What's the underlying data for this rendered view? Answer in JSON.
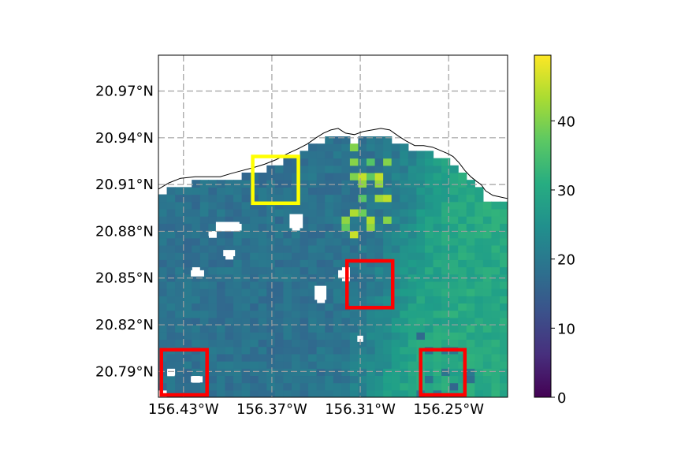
{
  "chart_data": {
    "type": "heatmap",
    "title": "",
    "xlabel": "",
    "ylabel": "",
    "projection": "geographic lat/lon map with coastline",
    "xlim": [
      -156.447,
      -156.21
    ],
    "ylim": [
      20.7735,
      20.993
    ],
    "x_ticks": [
      {
        "value": -156.43,
        "label": "156.43°W"
      },
      {
        "value": -156.37,
        "label": "156.37°W"
      },
      {
        "value": -156.31,
        "label": "156.31°W"
      },
      {
        "value": -156.25,
        "label": "156.25°W"
      }
    ],
    "y_ticks": [
      {
        "value": 20.97,
        "label": "20.97°N"
      },
      {
        "value": 20.94,
        "label": "20.94°N"
      },
      {
        "value": 20.91,
        "label": "20.91°N"
      },
      {
        "value": 20.88,
        "label": "20.88°N"
      },
      {
        "value": 20.85,
        "label": "20.85°N"
      },
      {
        "value": 20.82,
        "label": "20.82°N"
      },
      {
        "value": 20.79,
        "label": "20.79°N"
      }
    ],
    "grid": true,
    "grid_style": "dashed gray",
    "colormap": "viridis",
    "colorbar": {
      "min": 0,
      "max": 49.5,
      "ticks": [
        0,
        10,
        20,
        30,
        40
      ],
      "tick_labels": [
        "0",
        "10",
        "20",
        "30",
        "40"
      ]
    },
    "cell_size_deg": {
      "lon": 0.00565,
      "lat": 0.00465
    },
    "field_summary": "Gridded values over ocean; western area ~17-22, eastern area ~26-33 with streaks up to ~46 near the coast; white gaps are missing data",
    "coastline": [
      [
        -156.447,
        20.907
      ],
      [
        -156.44,
        20.911
      ],
      [
        -156.432,
        20.914
      ],
      [
        -156.422,
        20.915
      ],
      [
        -156.413,
        20.915
      ],
      [
        -156.405,
        20.915
      ],
      [
        -156.398,
        20.917
      ],
      [
        -156.39,
        20.919
      ],
      [
        -156.382,
        20.921
      ],
      [
        -156.375,
        20.923
      ],
      [
        -156.367,
        20.926
      ],
      [
        -156.359,
        20.93
      ],
      [
        -156.352,
        20.933
      ],
      [
        -156.346,
        20.936
      ],
      [
        -156.34,
        20.94
      ],
      [
        -156.335,
        20.943
      ],
      [
        -156.33,
        20.945
      ],
      [
        -156.325,
        20.946
      ],
      [
        -156.32,
        20.943
      ],
      [
        -156.314,
        20.942
      ],
      [
        -156.308,
        20.944
      ],
      [
        -156.302,
        20.945
      ],
      [
        -156.296,
        20.946
      ],
      [
        -156.29,
        20.945
      ],
      [
        -156.284,
        20.941
      ],
      [
        -156.279,
        20.938
      ],
      [
        -156.273,
        20.935
      ],
      [
        -156.267,
        20.935
      ],
      [
        -156.261,
        20.934
      ],
      [
        -156.256,
        20.932
      ],
      [
        -156.251,
        20.93
      ],
      [
        -156.247,
        20.928
      ],
      [
        -156.243,
        20.924
      ],
      [
        -156.239,
        20.919
      ],
      [
        -156.235,
        20.915
      ],
      [
        -156.231,
        20.912
      ],
      [
        -156.228,
        20.91
      ],
      [
        -156.225,
        20.906
      ],
      [
        -156.22,
        20.903
      ],
      [
        -156.215,
        20.902
      ],
      [
        -156.21,
        20.901
      ]
    ],
    "nodata_patches": [
      [
        -156.408,
        20.88,
        -156.392,
        20.886
      ],
      [
        -156.413,
        20.877,
        -156.408,
        20.88
      ],
      [
        -156.425,
        20.851,
        -156.416,
        20.855
      ],
      [
        -156.403,
        20.864,
        -156.395,
        20.868
      ],
      [
        -156.358,
        20.882,
        -156.349,
        20.891
      ],
      [
        -156.325,
        20.85,
        -156.317,
        20.855
      ],
      [
        -156.341,
        20.836,
        -156.333,
        20.845
      ],
      [
        -156.312,
        20.809,
        -156.308,
        20.813
      ],
      [
        -156.441,
        20.787,
        -156.436,
        20.791
      ],
      [
        -156.425,
        20.783,
        -156.417,
        20.787
      ],
      [
        -156.447,
        20.773,
        -156.444,
        20.777
      ]
    ],
    "annotations": [
      {
        "type": "rectangle",
        "color": "#ffff00",
        "lon": [
          -156.383,
          -156.352
        ],
        "lat": [
          20.898,
          20.928
        ]
      },
      {
        "type": "rectangle",
        "color": "#ff0000",
        "lon": [
          -156.319,
          -156.288
        ],
        "lat": [
          20.831,
          20.861
        ]
      },
      {
        "type": "rectangle",
        "color": "#ff0000",
        "lon": [
          -156.445,
          -156.414
        ],
        "lat": [
          20.775,
          20.804
        ]
      },
      {
        "type": "rectangle",
        "color": "#ff0000",
        "lon": [
          -156.269,
          -156.239
        ],
        "lat": [
          20.775,
          20.804
        ]
      }
    ]
  }
}
